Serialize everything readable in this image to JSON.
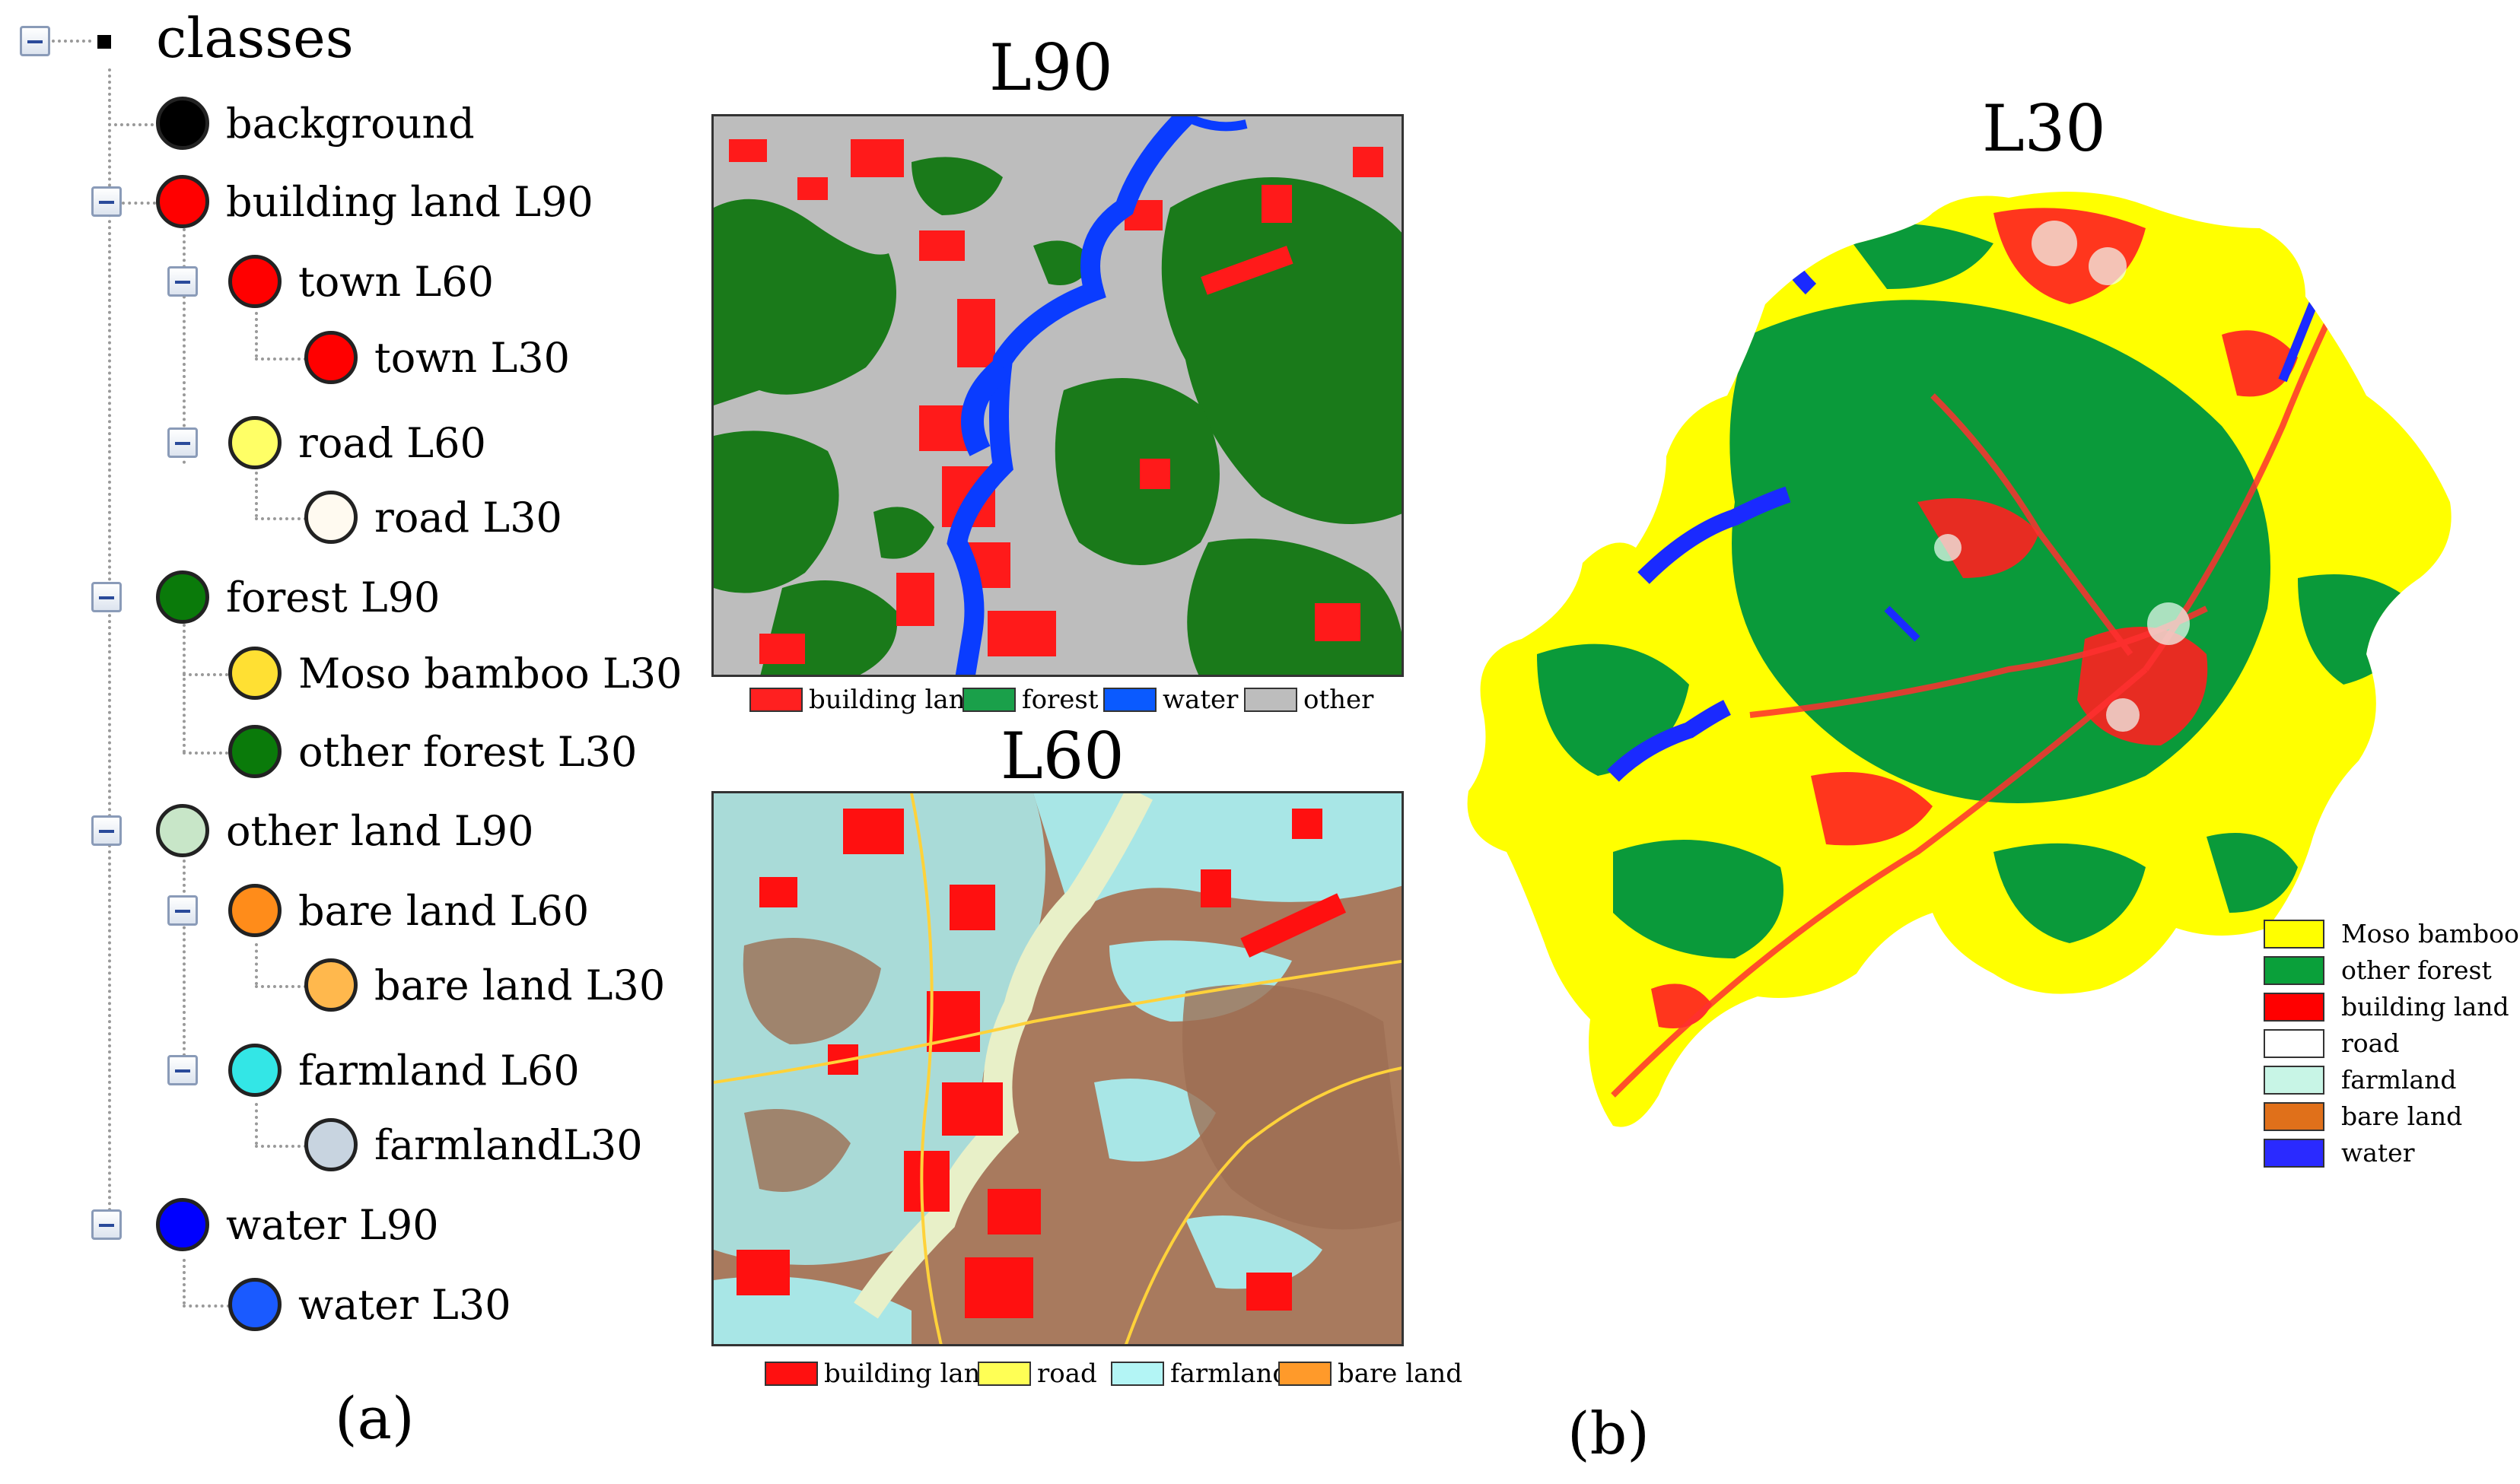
{
  "tree": {
    "root": "classes",
    "nodes": [
      {
        "label": "background",
        "color": "#000000"
      },
      {
        "label": "building land L90",
        "color": "#ff0000"
      },
      {
        "label": "town L60",
        "color": "#ff0000"
      },
      {
        "label": "town L30",
        "color": "#ff0000"
      },
      {
        "label": "road L60",
        "color": "#ffff66"
      },
      {
        "label": "road L30",
        "color": "#fffaf0"
      },
      {
        "label": "forest L90",
        "color": "#0a7a0a"
      },
      {
        "label": "Moso bamboo L30",
        "color": "#ffe033"
      },
      {
        "label": "other forest L30",
        "color": "#0a7a0a"
      },
      {
        "label": "other land L90",
        "color": "#c8e6c8"
      },
      {
        "label": "bare land L60",
        "color": "#ff8c1a"
      },
      {
        "label": "bare land L30",
        "color": "#ffb84d"
      },
      {
        "label": "farmland L60",
        "color": "#33e6e6"
      },
      {
        "label": "farmlandL30",
        "color": "#c8d4e0"
      },
      {
        "label": "water L90",
        "color": "#0000ff"
      },
      {
        "label": "water L30",
        "color": "#1a5aff"
      }
    ]
  },
  "captions": {
    "a": "(a)",
    "b": "(b)"
  },
  "maps": {
    "l90": {
      "title": "L90",
      "legend": [
        {
          "label": "building land",
          "color": "#ff2020"
        },
        {
          "label": "forest",
          "color": "#1aa04a"
        },
        {
          "label": "water",
          "color": "#0a5aff"
        },
        {
          "label": "other",
          "color": "#bdbdbd"
        }
      ]
    },
    "l60": {
      "title": "L60",
      "legend": [
        {
          "label": "building land",
          "color": "#ff1010"
        },
        {
          "label": "road",
          "color": "#ffff55"
        },
        {
          "label": "farmland",
          "color": "#b3f5f5"
        },
        {
          "label": "bare land",
          "color": "#ff9a2a"
        }
      ]
    },
    "l30": {
      "title": "L30",
      "legend": [
        {
          "label": "Moso bamboo",
          "color": "#ffff00"
        },
        {
          "label": "other forest",
          "color": "#0aa03a"
        },
        {
          "label": "building land",
          "color": "#ff0000"
        },
        {
          "label": "road",
          "color": "#ffffff"
        },
        {
          "label": "farmland",
          "color": "#c8f5e6"
        },
        {
          "label": "bare land",
          "color": "#e0701a"
        },
        {
          "label": "water",
          "color": "#2a2aff"
        }
      ]
    }
  }
}
